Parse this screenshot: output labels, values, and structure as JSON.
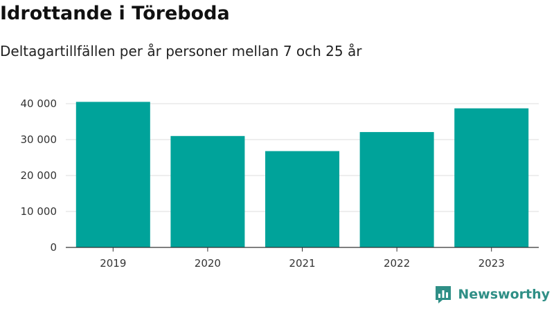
{
  "title": "Idrottande i Töreboda",
  "subtitle": "Deltagartillfällen per år personer mellan 7 och 25 år",
  "brand": {
    "name": "Newsworthy",
    "icon": "newsworthy-logo-icon"
  },
  "colors": {
    "bar": "#00a39a",
    "grid": "#dddddd",
    "axis": "#333333",
    "brand": "#2f8f86"
  },
  "chart_data": {
    "type": "bar",
    "categories": [
      "2019",
      "2020",
      "2021",
      "2022",
      "2023"
    ],
    "values": [
      40500,
      31000,
      26800,
      32100,
      38700
    ],
    "ylim": [
      0,
      40000
    ],
    "yticks": [
      0,
      10000,
      20000,
      30000,
      40000
    ],
    "ytick_labels": [
      "0",
      "10 000",
      "20 000",
      "30 000",
      "40 000"
    ],
    "grid": true
  }
}
